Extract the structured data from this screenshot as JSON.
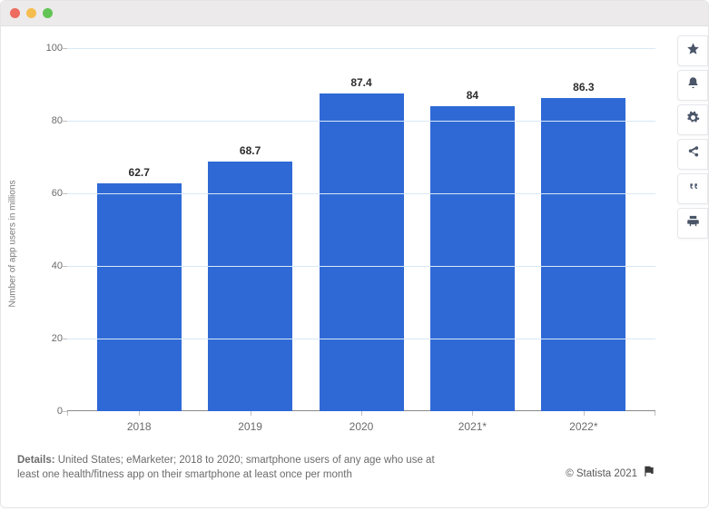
{
  "window": {
    "dots": [
      "#ee6b60",
      "#f5bd4f",
      "#61c454"
    ]
  },
  "toolbar": {
    "items": [
      {
        "name": "favorite-icon"
      },
      {
        "name": "bell-icon"
      },
      {
        "name": "gear-icon"
      },
      {
        "name": "share-icon"
      },
      {
        "name": "quote-icon"
      },
      {
        "name": "print-icon"
      }
    ]
  },
  "chart": {
    "type": "bar",
    "y_axis_title": "Number of app users in millions",
    "categories": [
      "2018",
      "2019",
      "2020",
      "2021*",
      "2022*"
    ],
    "values": [
      62.7,
      68.7,
      87.4,
      84,
      86.3
    ],
    "value_labels": [
      "62.7",
      "68.7",
      "87.4",
      "84",
      "86.3"
    ],
    "bar_color": "#2f69d6",
    "ylim": [
      0,
      100
    ],
    "ytick_step": 20,
    "y_ticks": [
      0,
      20,
      40,
      60,
      80,
      100
    ],
    "grid_color": "#d9e8f6",
    "axis_color": "#8a8a8a",
    "tick_label_color": "#6b6b6b",
    "value_label_fontsize": 12,
    "tick_label_fontsize": 11,
    "y_title_fontsize": 10,
    "background_color": "#ffffff",
    "bar_width_ratio": 0.76
  },
  "footer": {
    "details_label": "Details:",
    "details_text": "United States; eMarketer; 2018 to 2020; smartphone users of any age who use at least one health/fitness app on their smartphone at least once per month",
    "attribution": "© Statista 2021"
  }
}
